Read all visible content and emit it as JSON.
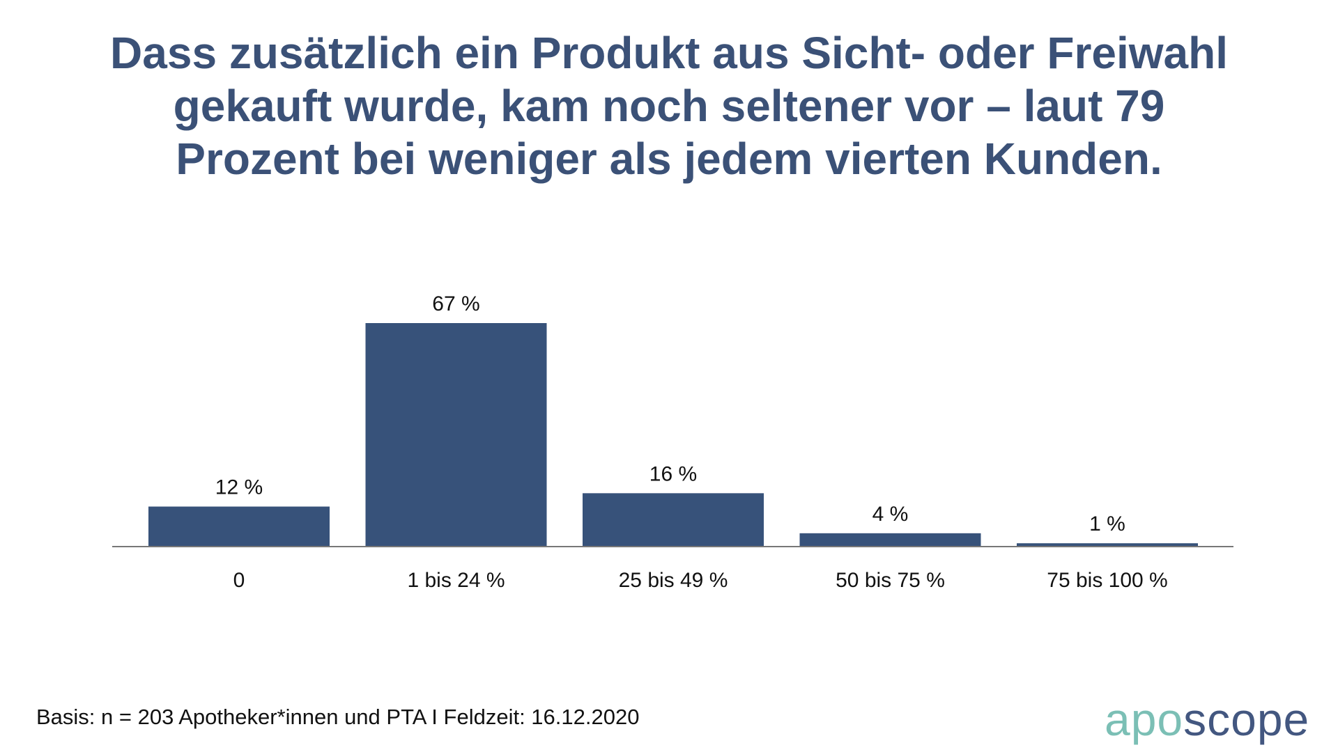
{
  "title_lines": [
    "Dass zusätzlich ein Produkt aus Sicht- oder Freiwahl",
    "gekauft wurde, kam noch seltener vor – laut 79",
    "Prozent bei weniger als jedem vierten Kunden."
  ],
  "footer": "Basis: n = 203 Apotheker*innen und PTA I Feldzeit: 16.12.2020",
  "logo": {
    "part1": "apo",
    "part2": "scope"
  },
  "colors": {
    "bar": "#37527a",
    "title": "#3b5177",
    "axis": "#777777",
    "logo_teal": "#7bbfb5",
    "logo_blue": "#435780"
  },
  "chart_data": {
    "type": "bar",
    "title": "Dass zusätzlich ein Produkt aus Sicht- oder Freiwahl gekauft wurde, kam noch seltener vor – laut 79 Prozent bei weniger als jedem vierten Kunden.",
    "categories": [
      "0",
      "1 bis 24 %",
      "25 bis 49 %",
      "50 bis 75 %",
      "75 bis 100 %"
    ],
    "values": [
      12,
      67,
      16,
      4,
      1
    ],
    "value_labels": [
      "12 %",
      "67 %",
      "16 %",
      "4 %",
      "1 %"
    ],
    "xlabel": "",
    "ylabel": "",
    "ylim": [
      0,
      70
    ],
    "grid": false,
    "legend": "none"
  }
}
